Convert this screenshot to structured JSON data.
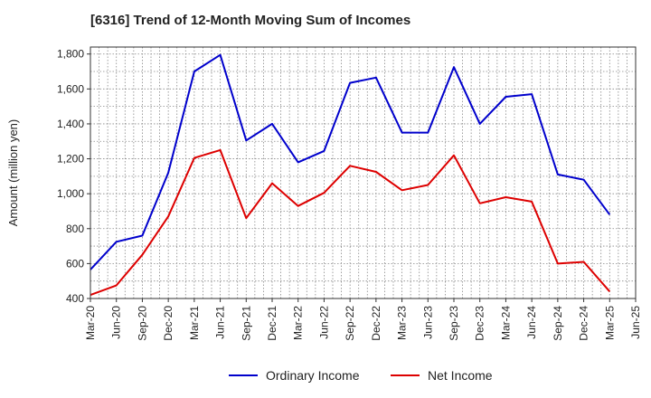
{
  "chart_data": {
    "type": "line",
    "title": "[6316]  Trend of 12-Month Moving Sum of Incomes",
    "xlabel": "",
    "ylabel": "Amount (million yen)",
    "ylim": [
      400,
      1840
    ],
    "yticks": [
      400,
      600,
      800,
      1000,
      1200,
      1400,
      1600,
      1800
    ],
    "ytick_labels": [
      "400",
      "600",
      "800",
      "1,000",
      "1,200",
      "1,400",
      "1,600",
      "1,800"
    ],
    "grid": true,
    "legend_position": "bottom-center",
    "categories": [
      "Mar-20",
      "Jun-20",
      "Sep-20",
      "Dec-20",
      "Mar-21",
      "Jun-21",
      "Sep-21",
      "Dec-21",
      "Mar-22",
      "Jun-22",
      "Sep-22",
      "Dec-22",
      "Mar-23",
      "Jun-23",
      "Sep-23",
      "Dec-23",
      "Mar-24",
      "Jun-24",
      "Sep-24",
      "Dec-24",
      "Mar-25",
      "Jun-25"
    ],
    "series": [
      {
        "name": "Ordinary Income",
        "color": "#0000cc",
        "values": [
          565,
          725,
          760,
          1120,
          1700,
          1795,
          1305,
          1400,
          1180,
          1245,
          1635,
          1665,
          1350,
          1350,
          1725,
          1400,
          1555,
          1570,
          1110,
          1080,
          880,
          null
        ]
      },
      {
        "name": "Net Income",
        "color": "#dd0000",
        "values": [
          420,
          475,
          650,
          870,
          1205,
          1250,
          860,
          1060,
          930,
          1005,
          1160,
          1125,
          1020,
          1050,
          1220,
          945,
          980,
          955,
          600,
          610,
          440,
          null
        ]
      }
    ]
  }
}
